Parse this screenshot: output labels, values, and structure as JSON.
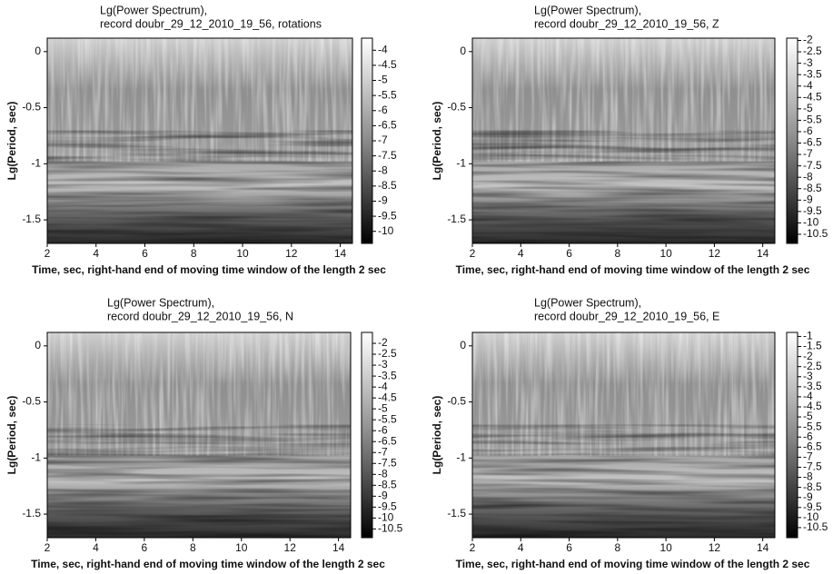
{
  "chart_data": [
    {
      "type": "heatmap",
      "title": "Lg(Power Spectrum),",
      "subtitle": "record doubr_29_12_2010_19_56, rotations",
      "x_label": "Time, sec, right-hand end of moving time window of the length 2 sec",
      "y_label": "Lg(Period, sec)",
      "xlim": [
        2,
        14.5
      ],
      "xticks": [
        2,
        4,
        6,
        8,
        10,
        12,
        14
      ],
      "ylim": [
        -1.71,
        0.12
      ],
      "yticks": [
        0,
        -0.5,
        -1,
        -1.5
      ],
      "clim": [
        -10.4,
        -3.6
      ],
      "colorbar_ticks": [
        -4,
        -4.5,
        -5,
        -5.5,
        -6,
        -6.5,
        -7,
        -7.5,
        -8,
        -8.5,
        -9,
        -9.5,
        -10
      ]
    },
    {
      "type": "heatmap",
      "title": "Lg(Power Spectrum),",
      "subtitle": "record doubr_29_12_2010_19_56, Z",
      "x_label": "Time, sec, right-hand end of moving time window of the length 2 sec",
      "y_label": "Lg(Period, sec)",
      "xlim": [
        2,
        14.5
      ],
      "xticks": [
        2,
        4,
        6,
        8,
        10,
        12,
        14
      ],
      "ylim": [
        -1.71,
        0.12
      ],
      "yticks": [
        0,
        -0.5,
        -1,
        -1.5
      ],
      "clim": [
        -10.9,
        -1.9
      ],
      "colorbar_ticks": [
        -2,
        -2.5,
        -3,
        -3.5,
        -4,
        -4.5,
        -5,
        -5.5,
        -6,
        -6.5,
        -7,
        -7.5,
        -8,
        -8.5,
        -9,
        -9.5,
        -10,
        -10.5
      ]
    },
    {
      "type": "heatmap",
      "title": "Lg(Power Spectrum),",
      "subtitle": "record doubr_29_12_2010_19_56, N",
      "x_label": "Time, sec, right-hand end of moving time window of the length 2 sec",
      "y_label": "Lg(Period, sec)",
      "xlim": [
        2,
        14.5
      ],
      "xticks": [
        2,
        4,
        6,
        8,
        10,
        12,
        14
      ],
      "ylim": [
        -1.71,
        0.12
      ],
      "yticks": [
        0,
        -0.5,
        -1,
        -1.5
      ],
      "clim": [
        -10.9,
        -1.5
      ],
      "colorbar_ticks": [
        -2,
        -2.5,
        -3,
        -3.5,
        -4,
        -4.5,
        -5,
        -5.5,
        -6,
        -6.5,
        -7,
        -7.5,
        -8,
        -8.5,
        -9,
        -9.5,
        -10,
        -10.5
      ]
    },
    {
      "type": "heatmap",
      "title": "Lg(Power Spectrum),",
      "subtitle": "record doubr_29_12_2010_19_56, E",
      "x_label": "Time, sec, right-hand end of moving time window of the length 2 sec",
      "y_label": "Lg(Period, sec)",
      "xlim": [
        2,
        14.5
      ],
      "xticks": [
        2,
        4,
        6,
        8,
        10,
        12,
        14
      ],
      "ylim": [
        -1.71,
        0.12
      ],
      "yticks": [
        0,
        -0.5,
        -1,
        -1.5
      ],
      "clim": [
        -11,
        -0.8
      ],
      "colorbar_ticks": [
        -1,
        -1.5,
        -2,
        -2.5,
        -3,
        -3.5,
        -4,
        -4.5,
        -5,
        -5.5,
        -6,
        -6.5,
        -7,
        -7.5,
        -8,
        -8.5,
        -9,
        -9.5,
        -10,
        -10.5
      ]
    }
  ]
}
